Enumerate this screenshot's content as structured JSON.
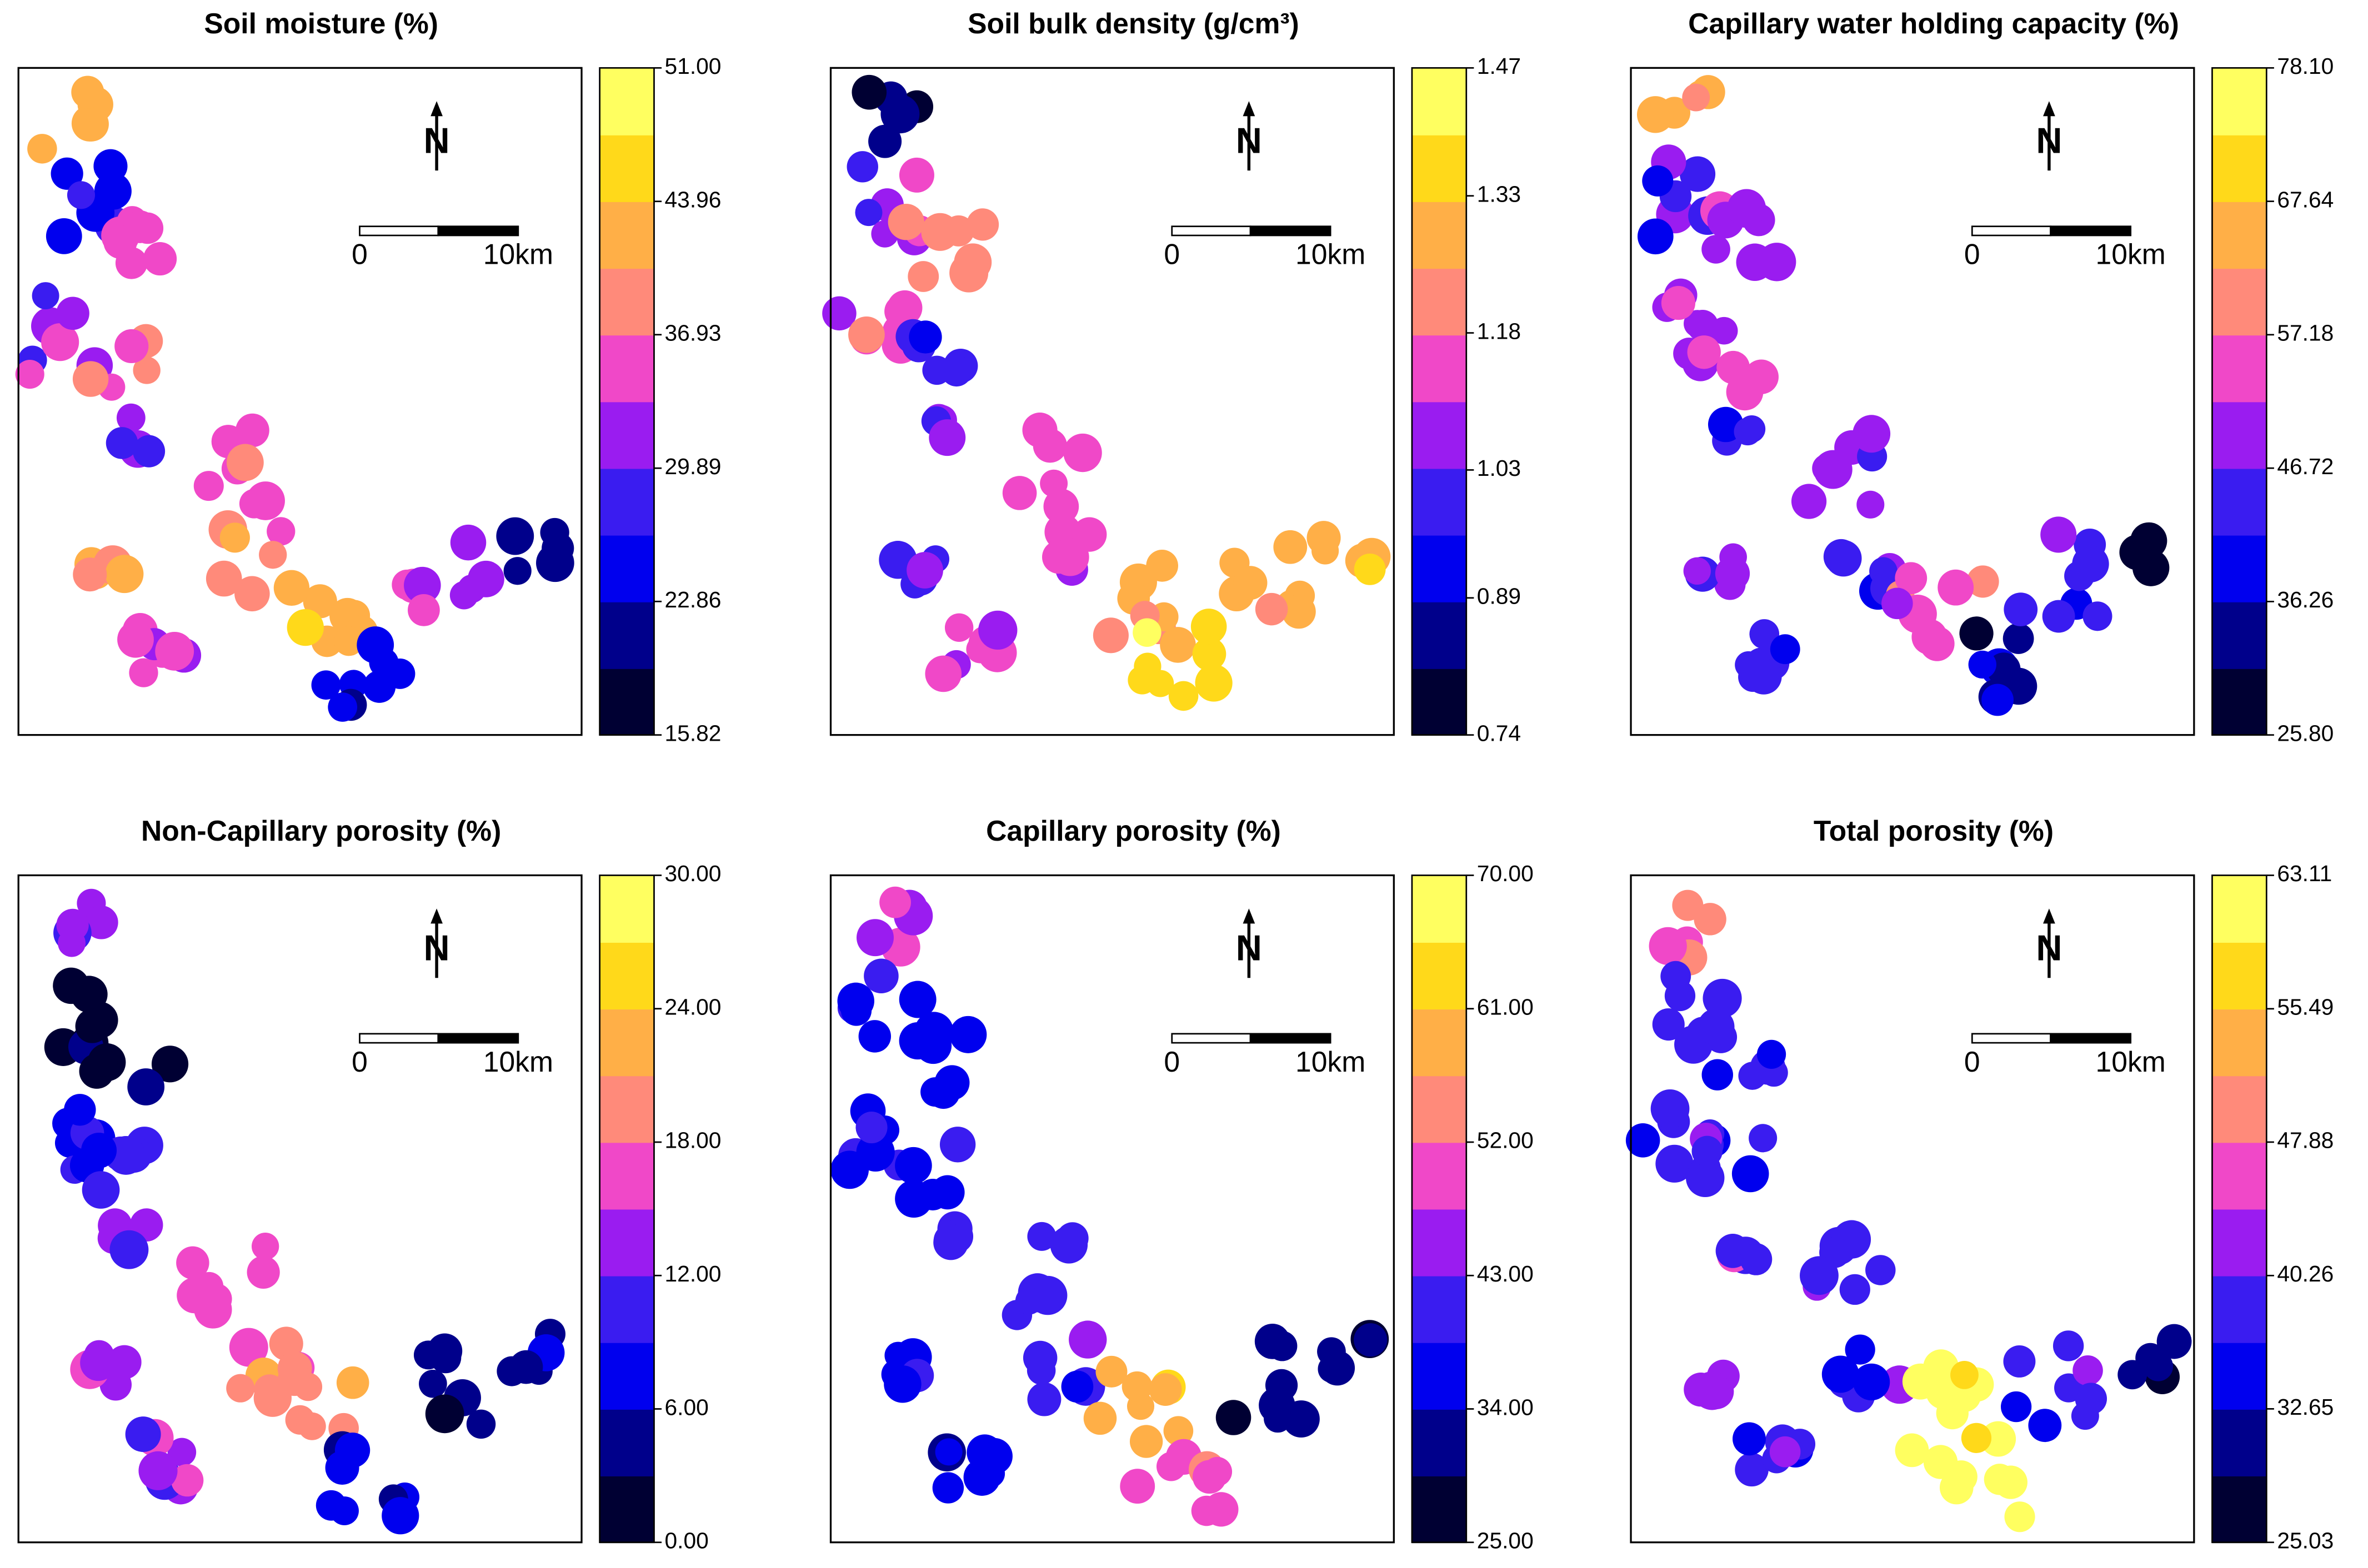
{
  "north": "N",
  "scale_bar": {
    "start": "0",
    "end": "10km"
  },
  "colors": [
    "#000033",
    "#00008b",
    "#0000ee",
    "#3a1cf0",
    "#9a1cf0",
    "#f048c8",
    "#ff8a7a",
    "#ffaf47",
    "#ffd91a",
    "#ffff60"
  ],
  "panels": [
    {
      "title": "Soil moisture (%)",
      "ticks": [
        15.82,
        22.86,
        29.89,
        36.93,
        43.96,
        {
          "value": 51,
          "label": "51.00"
        }
      ]
    },
    {
      "title": "Soil bulk density (g/cm³)",
      "ticks": [
        0.74,
        0.89,
        1.03,
        1.18,
        1.33,
        1.47
      ]
    },
    {
      "title": "Capillary water holding capacity (%)",
      "ticks": [
        {
          "value": 25.8,
          "label": "25.80"
        },
        36.26,
        46.72,
        57.18,
        67.64,
        {
          "value": 78.1,
          "label": "78.10"
        }
      ]
    },
    {
      "title": "Non-Capillary porosity (%)",
      "ticks": [
        {
          "value": 0,
          "label": "0.00"
        },
        {
          "value": 6,
          "label": "6.00"
        },
        {
          "value": 12,
          "label": "12.00"
        },
        {
          "value": 18,
          "label": "18.00"
        },
        {
          "value": 24,
          "label": "24.00"
        },
        {
          "value": 30,
          "label": "30.00"
        }
      ]
    },
    {
      "title": "Capillary porosity (%)",
      "ticks": [
        {
          "value": 25,
          "label": "25.00"
        },
        {
          "value": 34,
          "label": "34.00"
        },
        {
          "value": 43,
          "label": "43.00"
        },
        {
          "value": 52,
          "label": "52.00"
        },
        {
          "value": 61,
          "label": "61.00"
        },
        {
          "value": 70,
          "label": "70.00"
        }
      ]
    },
    {
      "title": "Total porosity (%)",
      "ticks": [
        25.03,
        32.65,
        40.26,
        47.88,
        55.49,
        63.11
      ]
    }
  ]
}
